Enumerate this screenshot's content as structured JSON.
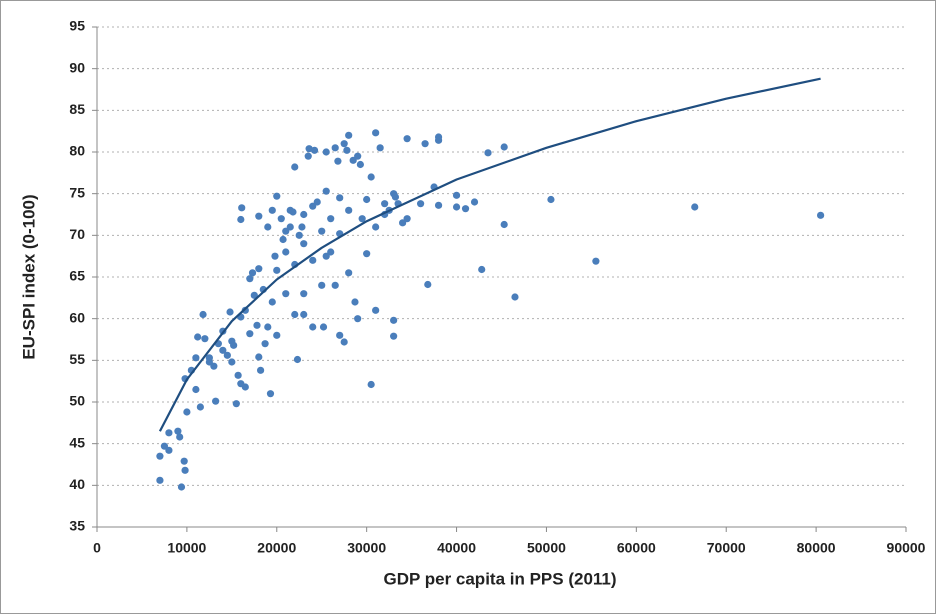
{
  "chart_data": {
    "type": "scatter",
    "x_label": "GDP per capita in PPS (2011)",
    "y_label": "EU-SPI index (0-100)",
    "xlim": [
      0,
      90000
    ],
    "xticks": [
      0,
      10000,
      20000,
      30000,
      40000,
      50000,
      60000,
      70000,
      80000,
      90000
    ],
    "ylim": [
      35,
      95
    ],
    "yticks": [
      35,
      40,
      45,
      50,
      55,
      60,
      65,
      70,
      75,
      80,
      85,
      90,
      95
    ],
    "grid": true,
    "points": {
      "color": "#4a7ebb",
      "x": [
        7000,
        7000,
        7500,
        8000,
        8000,
        9000,
        9200,
        9400,
        9700,
        9800,
        10000,
        9800,
        10500,
        11000,
        11200,
        11500,
        11800,
        12000,
        12500,
        13000,
        13200,
        13500,
        14000,
        14000,
        14500,
        15000,
        15000,
        15500,
        15700,
        16000,
        16000,
        16100,
        16000,
        16500,
        16500,
        17000,
        17000,
        17500,
        18000,
        18000,
        18000,
        18200,
        18500,
        19000,
        19000,
        19300,
        19500,
        19500,
        20000,
        20000,
        20000,
        20500,
        21000,
        21000,
        21000,
        21500,
        21500,
        22000,
        22000,
        22000,
        22300,
        22500,
        23000,
        23000,
        23000,
        23500,
        23600,
        24000,
        24000,
        24000,
        24500,
        25000,
        25000,
        25200,
        25500,
        25500,
        26000,
        26000,
        26500,
        27000,
        27000,
        27000,
        27500,
        27500,
        28000,
        28000,
        28000,
        28500,
        28700,
        29000,
        29000,
        29500,
        30000,
        30000,
        30500,
        30500,
        31000,
        31000,
        31000,
        31500,
        32000,
        32500,
        33000,
        33000,
        33000,
        33500,
        34000,
        34500,
        34500,
        36000,
        36500,
        36800,
        37500,
        38000,
        38000,
        38000,
        40000,
        40000,
        41000,
        42000,
        42800,
        43500,
        45300,
        45300,
        46500,
        50500,
        55500,
        66500,
        80500,
        12500,
        14800,
        17300,
        19800,
        20700,
        21800,
        22800,
        24200,
        26800,
        27800,
        29300,
        32000,
        33200,
        23000,
        25500,
        26500,
        15200,
        17800,
        18700,
        11000
      ],
      "y": [
        40.6,
        43.5,
        44.7,
        46.3,
        44.2,
        46.5,
        45.8,
        39.8,
        42.9,
        41.8,
        48.8,
        52.8,
        53.8,
        55.3,
        57.8,
        49.4,
        60.5,
        57.6,
        55.3,
        54.3,
        50.1,
        57.0,
        58.5,
        56.2,
        55.6,
        57.3,
        54.8,
        49.8,
        53.2,
        52.2,
        60.2,
        73.3,
        71.9,
        51.8,
        61.0,
        64.8,
        58.2,
        62.8,
        66.0,
        72.3,
        55.4,
        53.8,
        63.5,
        71.0,
        59.0,
        51.0,
        73.0,
        62.0,
        74.7,
        65.8,
        58.0,
        72.0,
        70.5,
        68.0,
        63.0,
        73.0,
        71.0,
        66.5,
        60.5,
        78.2,
        55.1,
        70.0,
        72.5,
        69.0,
        63.0,
        79.5,
        80.4,
        67.0,
        73.5,
        59.0,
        74.0,
        70.5,
        64.0,
        59.0,
        75.3,
        80.0,
        72.0,
        68.0,
        80.5,
        74.5,
        58.0,
        70.2,
        81.0,
        57.2,
        82.0,
        65.5,
        73.0,
        79.0,
        62.0,
        79.5,
        60.0,
        72.0,
        74.3,
        67.8,
        52.1,
        77.0,
        82.3,
        71.0,
        61.0,
        80.5,
        72.5,
        73.0,
        59.8,
        57.9,
        75.0,
        73.8,
        71.5,
        81.6,
        72.0,
        73.8,
        81.0,
        64.1,
        75.8,
        81.8,
        81.4,
        73.6,
        74.8,
        73.4,
        73.2,
        74.0,
        65.9,
        79.9,
        80.6,
        71.3,
        62.6,
        74.3,
        66.9,
        73.4,
        72.4,
        54.8,
        60.8,
        65.5,
        67.5,
        69.5,
        72.8,
        71.0,
        80.2,
        78.9,
        80.2,
        78.5,
        73.8,
        74.6,
        60.5,
        67.5,
        64.0,
        56.8,
        59.2,
        57.0,
        51.5
      ]
    },
    "trend": {
      "color": "#1f4e80",
      "x": [
        7000,
        10000,
        15000,
        20000,
        25000,
        30000,
        40000,
        50000,
        60000,
        70000,
        80500
      ],
      "y": [
        46.5,
        52.7,
        59.7,
        64.7,
        68.5,
        71.7,
        76.7,
        80.5,
        83.7,
        86.4,
        88.8
      ]
    }
  }
}
